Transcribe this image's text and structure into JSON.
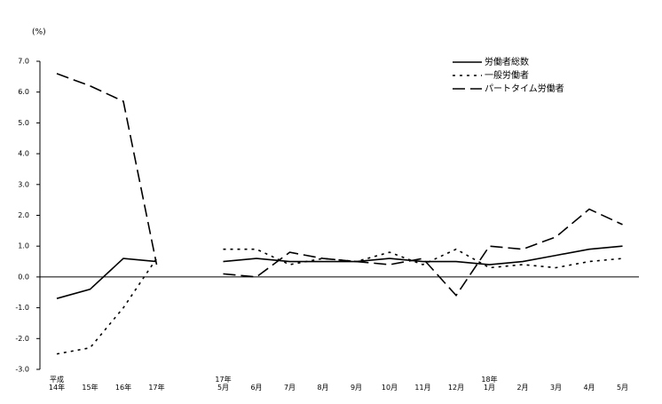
{
  "chart_data": {
    "type": "line",
    "y_label": "(%)",
    "categories": [
      "平成\n14年",
      "15年",
      "16年",
      "17年",
      null,
      "17年\n5月",
      "6月",
      "7月",
      "8月",
      "9月",
      "10月",
      "11月",
      "12月",
      "18年\n1月",
      "2月",
      "3月",
      "4月",
      "5月"
    ],
    "series": [
      {
        "name": "労働者総数",
        "color": "#000000",
        "dash": "solid",
        "values": [
          -0.7,
          -0.4,
          0.6,
          0.5,
          null,
          0.5,
          0.6,
          0.5,
          0.5,
          0.5,
          0.6,
          0.5,
          0.5,
          0.4,
          0.5,
          0.7,
          0.9,
          1.0
        ]
      },
      {
        "name": "一般労働者",
        "color": "#000000",
        "dash": "dotted",
        "values": [
          -2.5,
          -2.3,
          -1.0,
          0.6,
          null,
          0.9,
          0.9,
          0.4,
          0.6,
          0.5,
          0.8,
          0.4,
          0.9,
          0.3,
          0.4,
          0.3,
          0.5,
          0.6
        ]
      },
      {
        "name": "パートタイム労働者",
        "color": "#000000",
        "dash": "dashed",
        "values": [
          6.6,
          6.2,
          5.7,
          0.4,
          null,
          0.1,
          0.0,
          0.8,
          0.6,
          0.5,
          0.4,
          0.6,
          -0.6,
          1.0,
          0.9,
          1.3,
          2.2,
          1.7
        ]
      }
    ],
    "ylim": [
      -3,
      7
    ],
    "yticks": [
      {
        "value": 7,
        "label": "7.0"
      },
      {
        "value": 6,
        "label": "6.0"
      },
      {
        "value": 5,
        "label": "5.0"
      },
      {
        "value": 4,
        "label": "4.0"
      },
      {
        "value": 3,
        "label": "3.0"
      },
      {
        "value": 2,
        "label": "2.0"
      },
      {
        "value": 1,
        "label": "1.0"
      },
      {
        "value": 0,
        "label": "0.0"
      },
      {
        "value": -1,
        "label": "-1.0"
      },
      {
        "value": -2,
        "label": "-2.0"
      },
      {
        "value": -3,
        "label": "-3.0"
      }
    ],
    "grid": false,
    "legend": "upper right"
  }
}
